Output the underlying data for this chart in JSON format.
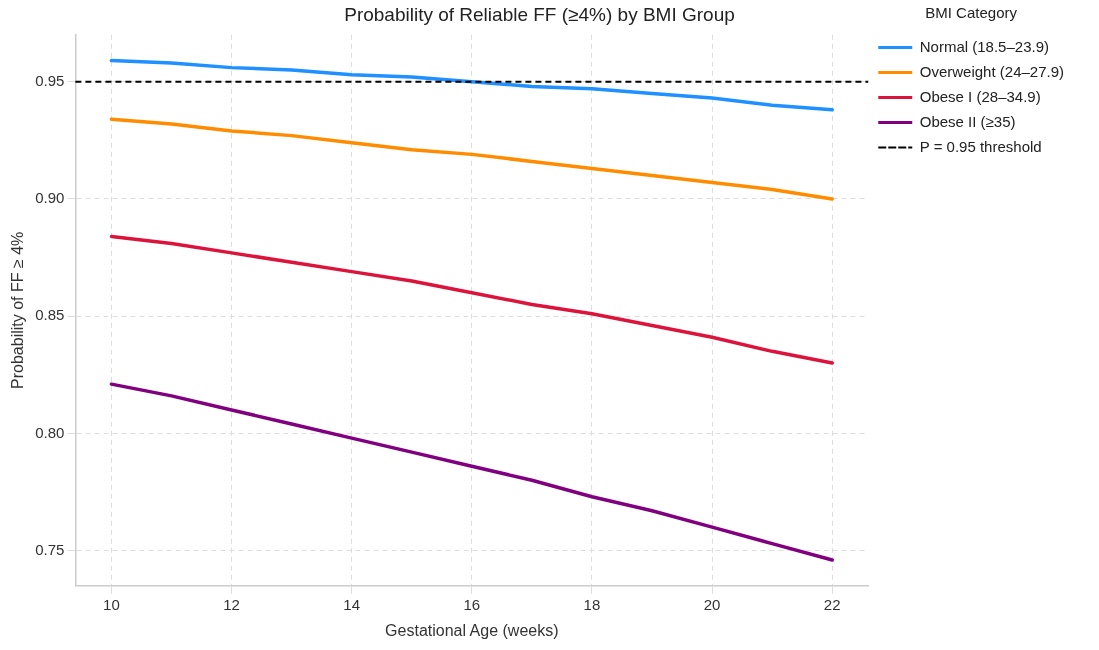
{
  "chart_data": {
    "type": "line",
    "title": "Probability of Reliable FF (≥4%) by BMI Group",
    "xlabel": "Gestational Age (weeks)",
    "ylabel": "Probability of FF ≥ 4%",
    "legend_title": "BMI Category",
    "x": [
      10,
      11,
      12,
      13,
      14,
      15,
      16,
      17,
      18,
      19,
      20,
      21,
      22
    ],
    "series": [
      {
        "name": "Normal (18.5–23.9)",
        "color": "#1e90ff",
        "values": [
          0.959,
          0.958,
          0.956,
          0.955,
          0.953,
          0.952,
          0.95,
          0.948,
          0.947,
          0.945,
          0.943,
          0.94,
          0.938
        ]
      },
      {
        "name": "Overweight (24–27.9)",
        "color": "#ff8c00",
        "values": [
          0.934,
          0.932,
          0.929,
          0.927,
          0.924,
          0.921,
          0.919,
          0.916,
          0.913,
          0.91,
          0.907,
          0.904,
          0.9
        ]
      },
      {
        "name": "Obese I (28–34.9)",
        "color": "#dc143c",
        "values": [
          0.884,
          0.881,
          0.877,
          0.873,
          0.869,
          0.865,
          0.86,
          0.855,
          0.851,
          0.846,
          0.841,
          0.835,
          0.83
        ]
      },
      {
        "name": "Obese II (≥35)",
        "color": "#800080",
        "values": [
          0.821,
          0.816,
          0.81,
          0.804,
          0.798,
          0.792,
          0.786,
          0.78,
          0.773,
          0.767,
          0.76,
          0.753,
          0.746
        ]
      }
    ],
    "ref_lines": [
      {
        "axis": "y",
        "value": 0.95,
        "label": "P = 0.95 threshold",
        "color": "#000000",
        "line_style": "dashed"
      }
    ],
    "xlim": [
      9.4,
      22.6
    ],
    "xticks": [
      10,
      12,
      14,
      16,
      18,
      20,
      22
    ],
    "ylim": [
      0.735,
      0.97
    ],
    "yticks": [
      {
        "value": 0.75,
        "label": "0.75"
      },
      {
        "value": 0.8,
        "label": "0.80"
      },
      {
        "value": 0.85,
        "label": "0.85"
      },
      {
        "value": 0.9,
        "label": "0.90"
      },
      {
        "value": 0.95,
        "label": "0.95"
      }
    ],
    "grid": true,
    "legend": "top right",
    "marker": "none",
    "line_style": "solid"
  }
}
